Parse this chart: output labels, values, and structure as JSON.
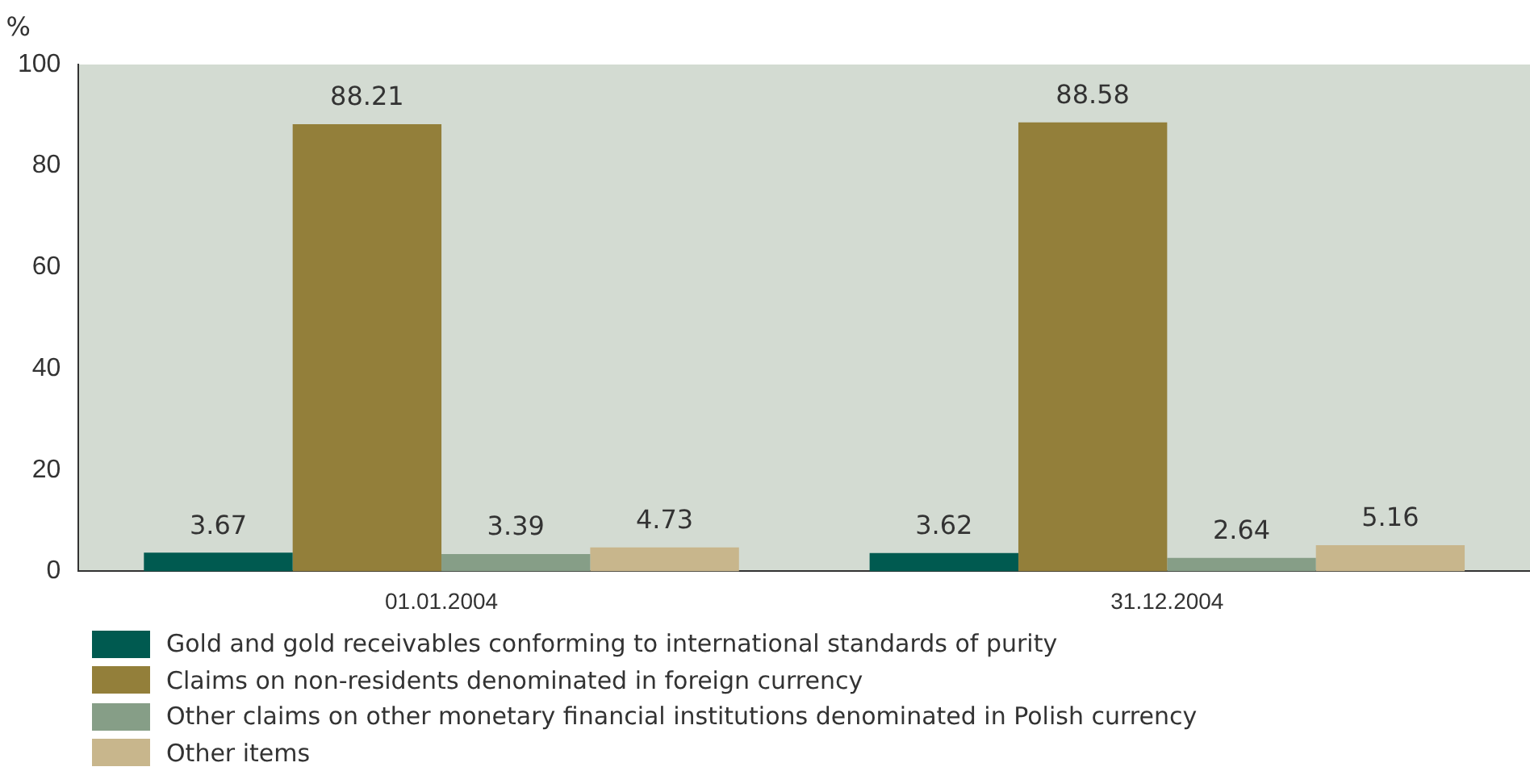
{
  "chart_data": {
    "type": "bar",
    "ylabel": "%",
    "categories": [
      "01.01.2004",
      "31.12.2004"
    ],
    "series": [
      {
        "name": "Gold and gold receivables conforming to international standards of purity",
        "color": "#005a50",
        "values": [
          3.67,
          3.62
        ]
      },
      {
        "name": "Claims on non-residents denominated in foreign currency",
        "color": "#937f3a",
        "values": [
          88.21,
          88.58
        ]
      },
      {
        "name": "Other claims on other monetary financial institutions denominated in Polish currency",
        "color": "#869e87",
        "values": [
          3.39,
          2.64
        ]
      },
      {
        "name": "Other items",
        "color": "#c8b68c",
        "values": [
          4.73,
          5.16
        ]
      }
    ],
    "ylim": [
      0,
      100
    ],
    "yticks": [
      0,
      20,
      40,
      60,
      80,
      100
    ],
    "grid": false,
    "data_labels": true,
    "legend": "bottom"
  }
}
